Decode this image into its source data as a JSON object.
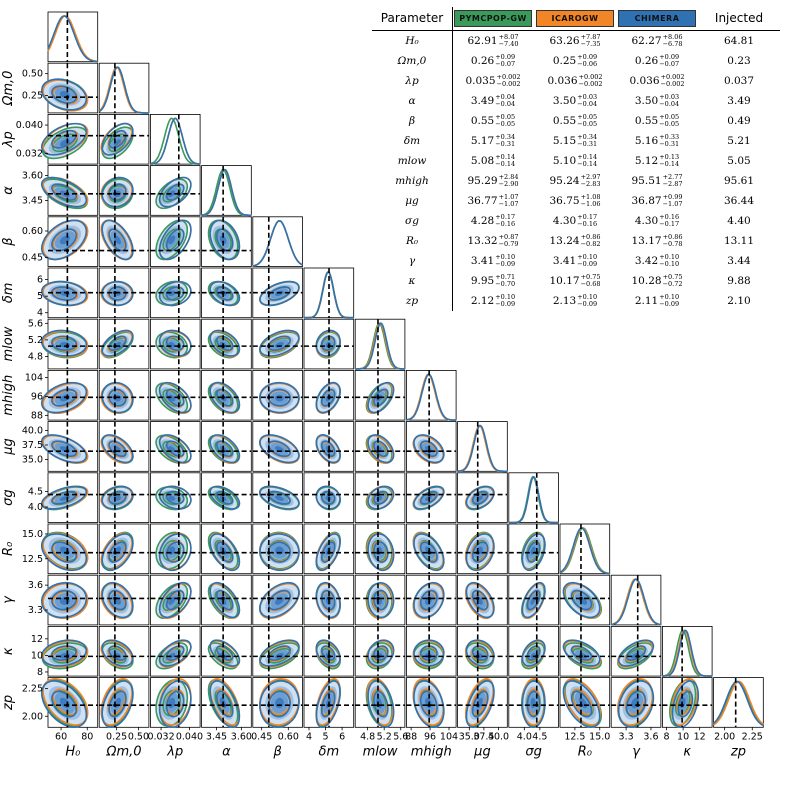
{
  "corner": {
    "params": [
      {
        "key": "H0",
        "label": "H₀",
        "inj": 64.81,
        "range": [
          50,
          88
        ],
        "ticks": [
          60,
          80
        ],
        "tick_labels": [
          "60",
          "80"
        ]
      },
      {
        "key": "Om",
        "label": "Ωm,0",
        "inj": 0.23,
        "range": [
          0.05,
          0.62
        ],
        "ticks": [
          0.25,
          0.5
        ],
        "tick_labels": [
          "0.25",
          "0.50"
        ]
      },
      {
        "key": "lam",
        "label": "λp",
        "inj": 0.037,
        "range": [
          0.029,
          0.043
        ],
        "ticks": [
          0.032,
          0.04
        ],
        "tick_labels": [
          "0.032",
          "0.040"
        ]
      },
      {
        "key": "alpha",
        "label": "α",
        "inj": 3.49,
        "range": [
          3.36,
          3.66
        ],
        "ticks": [
          3.45,
          3.6
        ],
        "tick_labels": [
          "3.45",
          "3.60"
        ]
      },
      {
        "key": "beta",
        "label": "β",
        "inj": 0.49,
        "range": [
          0.4,
          0.68
        ],
        "ticks": [
          0.45,
          0.6
        ],
        "tick_labels": [
          "0.45",
          "0.60"
        ]
      },
      {
        "key": "delta",
        "label": "δm",
        "inj": 5.21,
        "range": [
          3.7,
          6.7
        ],
        "ticks": [
          4,
          5,
          6
        ],
        "tick_labels": [
          "4",
          "5",
          "6"
        ]
      },
      {
        "key": "mlow",
        "label": "mlow",
        "inj": 5.05,
        "range": [
          4.5,
          5.7
        ],
        "ticks": [
          4.8,
          5.2,
          5.6
        ],
        "tick_labels": [
          "4.8",
          "5.2",
          "5.6"
        ]
      },
      {
        "key": "mhigh",
        "label": "mhigh",
        "inj": 95.61,
        "range": [
          86,
          107
        ],
        "ticks": [
          88,
          96,
          104
        ],
        "tick_labels": [
          "88",
          "96",
          "104"
        ]
      },
      {
        "key": "mug",
        "label": "μg",
        "inj": 36.44,
        "range": [
          33,
          41.5
        ],
        "ticks": [
          35,
          37.5,
          40
        ],
        "tick_labels": [
          "35.0",
          "37.5",
          "40.0"
        ]
      },
      {
        "key": "sig",
        "label": "σg",
        "inj": 4.4,
        "range": [
          3.5,
          5.1
        ],
        "ticks": [
          4,
          4.5
        ],
        "tick_labels": [
          "4.0",
          "4.5"
        ]
      },
      {
        "key": "R0",
        "label": "R₀",
        "inj": 13.11,
        "range": [
          11,
          16
        ],
        "ticks": [
          12.5,
          15
        ],
        "tick_labels": [
          "12.5",
          "15.0"
        ]
      },
      {
        "key": "gam",
        "label": "γ",
        "inj": 3.44,
        "range": [
          3.12,
          3.72
        ],
        "ticks": [
          3.3,
          3.6
        ],
        "tick_labels": [
          "3.3",
          "3.6"
        ]
      },
      {
        "key": "kap",
        "label": "κ",
        "inj": 9.88,
        "range": [
          7.5,
          13.5
        ],
        "ticks": [
          8,
          10,
          12
        ],
        "tick_labels": [
          "8",
          "10",
          "12"
        ]
      },
      {
        "key": "zp",
        "label": "zp",
        "inj": 2.1,
        "range": [
          1.9,
          2.35
        ],
        "ticks": [
          2,
          2.25
        ],
        "tick_labels": [
          "2.00",
          "2.25"
        ]
      }
    ],
    "colors": {
      "pymcpop": "#3a9a5c",
      "icarogw": "#f28526",
      "chimera": "#2f72b3",
      "fill": "#8db6df"
    }
  },
  "table": {
    "header": {
      "param": "Parameter",
      "s1": "PYMCPOP-GW",
      "s2": "ICAROGW",
      "s3": "CHIMERA",
      "inj": "Injected"
    },
    "colors": {
      "s1": "#3a9a5c",
      "s2": "#f28526",
      "s3": "#2f72b3"
    },
    "rows": [
      {
        "p": "H₀",
        "a": [
          "62.91",
          "+8.07",
          "−7.40"
        ],
        "b": [
          "63.26",
          "+7.87",
          "−7.35"
        ],
        "c": [
          "62.27",
          "+8.06",
          "−6.78"
        ],
        "inj": "64.81"
      },
      {
        "p": "Ωm,0",
        "a": [
          "0.26",
          "+0.09",
          "−0.07"
        ],
        "b": [
          "0.25",
          "+0.09",
          "−0.06"
        ],
        "c": [
          "0.26",
          "+0.09",
          "−0.07"
        ],
        "inj": "0.23"
      },
      {
        "p": "λp",
        "a": [
          "0.035",
          "+0.002",
          "−0.002"
        ],
        "b": [
          "0.036",
          "+0.002",
          "−0.002"
        ],
        "c": [
          "0.036",
          "+0.002",
          "−0.002"
        ],
        "inj": "0.037"
      },
      {
        "p": "α",
        "a": [
          "3.49",
          "+0.04",
          "−0.04"
        ],
        "b": [
          "3.50",
          "+0.03",
          "−0.04"
        ],
        "c": [
          "3.50",
          "+0.03",
          "−0.04"
        ],
        "inj": "3.49"
      },
      {
        "p": "β",
        "a": [
          "0.55",
          "+0.05",
          "−0.05"
        ],
        "b": [
          "0.55",
          "+0.05",
          "−0.05"
        ],
        "c": [
          "0.55",
          "+0.05",
          "−0.05"
        ],
        "inj": "0.49"
      },
      {
        "p": "δm",
        "a": [
          "5.17",
          "+0.34",
          "−0.31"
        ],
        "b": [
          "5.15",
          "+0.34",
          "−0.31"
        ],
        "c": [
          "5.16",
          "+0.33",
          "−0.31"
        ],
        "inj": "5.21"
      },
      {
        "p": "mlow",
        "a": [
          "5.08",
          "+0.14",
          "−0.14"
        ],
        "b": [
          "5.10",
          "+0.14",
          "−0.14"
        ],
        "c": [
          "5.12",
          "+0.13",
          "−0.14"
        ],
        "inj": "5.05"
      },
      {
        "p": "mhigh",
        "a": [
          "95.29",
          "+2.84",
          "−2.90"
        ],
        "b": [
          "95.24",
          "+2.97",
          "−2.83"
        ],
        "c": [
          "95.51",
          "+2.77",
          "−2.87"
        ],
        "inj": "95.61"
      },
      {
        "p": "μg",
        "a": [
          "36.77",
          "+1.07",
          "−1.07"
        ],
        "b": [
          "36.75",
          "+1.08",
          "−1.06"
        ],
        "c": [
          "36.87",
          "+0.99",
          "−1.07"
        ],
        "inj": "36.44"
      },
      {
        "p": "σg",
        "a": [
          "4.28",
          "+0.17",
          "−0.16"
        ],
        "b": [
          "4.30",
          "+0.17",
          "−0.16"
        ],
        "c": [
          "4.30",
          "+0.16",
          "−0.17"
        ],
        "inj": "4.40"
      },
      {
        "p": "R₀",
        "a": [
          "13.32",
          "+0.87",
          "−0.79"
        ],
        "b": [
          "13.24",
          "+0.86",
          "−0.82"
        ],
        "c": [
          "13.17",
          "+0.86",
          "−0.78"
        ],
        "inj": "13.11"
      },
      {
        "p": "γ",
        "a": [
          "3.41",
          "+0.10",
          "−0.09"
        ],
        "b": [
          "3.41",
          "+0.10",
          "−0.09"
        ],
        "c": [
          "3.42",
          "+0.10",
          "−0.10"
        ],
        "inj": "3.44"
      },
      {
        "p": "κ",
        "a": [
          "9.95",
          "+0.71",
          "−0.70"
        ],
        "b": [
          "10.17",
          "+0.75",
          "−0.68"
        ],
        "c": [
          "10.28",
          "+0.75",
          "−0.72"
        ],
        "inj": "9.88"
      },
      {
        "p": "zp",
        "a": [
          "2.12",
          "+0.10",
          "−0.09"
        ],
        "b": [
          "2.13",
          "+0.10",
          "−0.09"
        ],
        "c": [
          "2.11",
          "+0.10",
          "−0.09"
        ],
        "inj": "2.10"
      }
    ]
  },
  "chart_data": {
    "type": "scatter",
    "title": "",
    "xlabel": "",
    "ylabel": "",
    "description_series": [
      "PYMCPOP-GW",
      "ICAROGW",
      "CHIMERA"
    ],
    "parameters": [
      "H₀",
      "Ωm,0",
      "λp",
      "α",
      "β",
      "δm",
      "mlow",
      "mhigh",
      "μg",
      "σg",
      "R₀",
      "γ",
      "κ",
      "zp"
    ],
    "injected": [
      64.81,
      0.23,
      0.037,
      3.49,
      0.49,
      5.21,
      5.05,
      95.61,
      36.44,
      4.4,
      13.11,
      3.44,
      9.88,
      2.1
    ],
    "series": [
      {
        "name": "PYMCPOP-GW",
        "values": [
          62.91,
          0.26,
          0.035,
          3.49,
          0.55,
          5.17,
          5.08,
          95.29,
          36.77,
          4.28,
          13.32,
          3.41,
          9.95,
          2.12
        ]
      },
      {
        "name": "ICAROGW",
        "values": [
          63.26,
          0.25,
          0.036,
          3.5,
          0.55,
          5.15,
          5.1,
          95.24,
          36.75,
          4.3,
          13.24,
          3.41,
          10.17,
          2.13
        ]
      },
      {
        "name": "CHIMERA",
        "values": [
          62.27,
          0.26,
          0.036,
          3.5,
          0.55,
          5.16,
          5.12,
          95.51,
          36.87,
          4.3,
          13.17,
          3.42,
          10.28,
          2.11
        ]
      }
    ]
  }
}
